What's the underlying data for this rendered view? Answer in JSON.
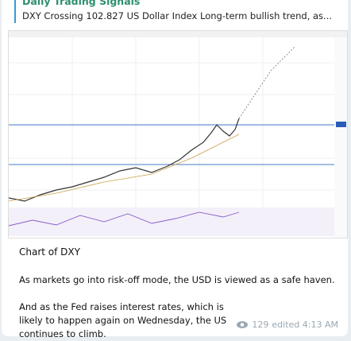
{
  "reply": {
    "author": "Daily Trading Signals",
    "text": "DXY Crossing 102.827 US Dollar Index Long-term bullish trend, as..."
  },
  "message": {
    "caption": "Chart of DXY",
    "paragraphs": [
      "As markets go into risk-off mode, the USD is viewed as a safe haven.",
      "And as the Fed raises interest rates, which is likely to happen again on Wednesday, the US continues to climb."
    ],
    "views": "129",
    "status": "edited 4:13 AM"
  }
}
